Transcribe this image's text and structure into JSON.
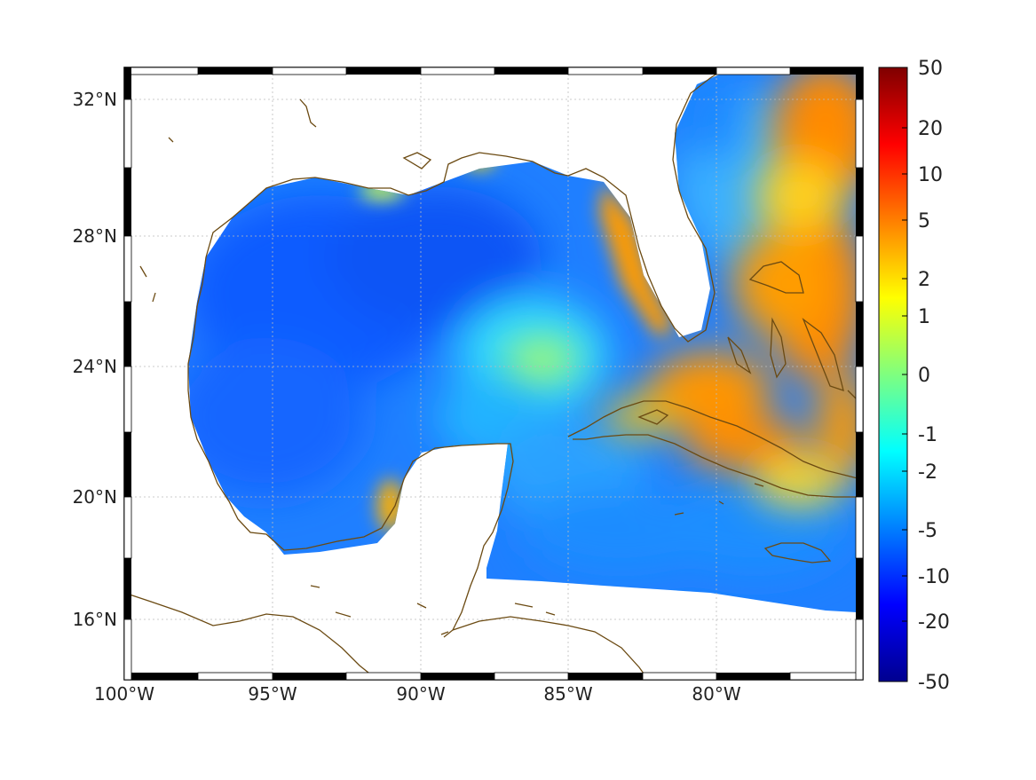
{
  "map": {
    "x_ticks": [
      "100°W",
      "95°W",
      "90°W",
      "85°W",
      "80°W"
    ],
    "y_ticks": [
      "32°N",
      "28°N",
      "24°N",
      "20°N",
      "16°N"
    ],
    "lon_range": [
      -100,
      -75.2
    ],
    "lat_range": [
      14.2,
      33
    ],
    "grid": true,
    "projection_frame": "black-white alternating border",
    "coastline_color": "#6b4a12"
  },
  "colorbar": {
    "ticks": [
      "50",
      "20",
      "10",
      "5",
      "2",
      "1",
      "0",
      "-1",
      "-2",
      "-5",
      "-10",
      "-20",
      "-50"
    ],
    "range": [
      -50,
      50
    ],
    "colormap": "jet"
  }
}
